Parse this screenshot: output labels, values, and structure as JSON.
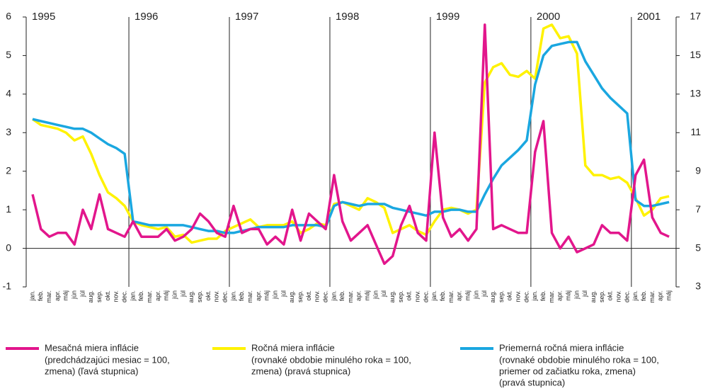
{
  "chart_data": {
    "type": "line",
    "categories": [
      "jan.",
      "feb.",
      "mar.",
      "apr.",
      "máj",
      "jún",
      "júl",
      "aug.",
      "sep.",
      "okt.",
      "nov.",
      "dec.",
      "jan.",
      "feb.",
      "mar.",
      "apr.",
      "máj",
      "jún",
      "júl",
      "aug.",
      "sep.",
      "okt.",
      "nov.",
      "dec.",
      "jan.",
      "feb.",
      "mar.",
      "apr.",
      "máj",
      "jún",
      "júl",
      "aug.",
      "sep.",
      "okt.",
      "nov.",
      "dec.",
      "jan.",
      "feb.",
      "mar.",
      "apr.",
      "máj",
      "jún",
      "júl",
      "aug.",
      "sep.",
      "okt.",
      "nov.",
      "dec.",
      "jan.",
      "feb.",
      "mar.",
      "apr.",
      "máj",
      "jún",
      "júl",
      "aug.",
      "sep.",
      "okt.",
      "nov.",
      "dec.",
      "jan.",
      "feb.",
      "mar.",
      "apr.",
      "máj",
      "jún",
      "júl",
      "aug.",
      "sep.",
      "okt.",
      "nov.",
      "dec.",
      "jan.",
      "feb.",
      "mar.",
      "apr.",
      "máj"
    ],
    "years": [
      "1995",
      "1996",
      "1997",
      "1998",
      "1999",
      "2000",
      "2001"
    ],
    "ylim": [
      -1,
      6
    ],
    "yticks": [
      -1,
      0,
      1,
      2,
      3,
      4,
      5,
      6
    ],
    "y2lim": [
      3,
      17
    ],
    "y2ticks": [
      3,
      5,
      7,
      9,
      11,
      13,
      15,
      17
    ],
    "series": [
      {
        "name": "Mesačná miera inflácie",
        "description": [
          "(predchádzajúci mesiac = 100,",
          "zmena) (ľavá stupnica)"
        ],
        "color": "#e2168c",
        "values": [
          1.4,
          0.5,
          0.3,
          0.4,
          0.4,
          0.1,
          1.0,
          0.5,
          1.4,
          0.5,
          0.4,
          0.3,
          0.7,
          0.3,
          0.3,
          0.3,
          0.5,
          0.2,
          0.3,
          0.5,
          0.9,
          0.7,
          0.4,
          0.3,
          1.1,
          0.4,
          0.5,
          0.5,
          0.1,
          0.3,
          0.1,
          1.0,
          0.2,
          0.9,
          0.7,
          0.5,
          1.9,
          0.7,
          0.2,
          0.4,
          0.6,
          0.1,
          -0.4,
          -0.2,
          0.6,
          1.1,
          0.4,
          0.2,
          3.0,
          0.8,
          0.3,
          0.5,
          0.2,
          0.5,
          5.8,
          0.5,
          0.6,
          0.5,
          0.4,
          0.4,
          2.5,
          3.3,
          0.4,
          0.0,
          0.3,
          -0.1,
          0.0,
          0.1,
          0.6,
          0.4,
          0.4,
          0.2,
          1.9,
          2.3,
          0.8,
          0.4,
          0.3
        ]
      },
      {
        "name": "Ročná miera inflácie",
        "description": [
          "(rovnaké obdobie minulého roka = 100,",
          "zmena) (pravá stupnica)"
        ],
        "color": "#fff200",
        "axis": "y2",
        "values": [
          11.7,
          11.4,
          11.3,
          11.2,
          11.0,
          10.6,
          10.8,
          9.9,
          8.8,
          7.9,
          7.6,
          7.2,
          6.4,
          6.2,
          6.1,
          6.0,
          6.1,
          5.6,
          5.7,
          5.3,
          5.4,
          5.5,
          5.5,
          5.9,
          6.1,
          6.3,
          6.5,
          6.1,
          6.2,
          6.2,
          6.2,
          6.4,
          5.8,
          6.0,
          6.3,
          6.2,
          7.3,
          7.4,
          7.2,
          7.0,
          7.6,
          7.4,
          7.1,
          5.8,
          6.0,
          6.2,
          5.9,
          5.7,
          6.4,
          7.0,
          7.1,
          7.0,
          6.8,
          7.0,
          13.6,
          14.4,
          14.6,
          14.0,
          13.9,
          14.2,
          13.8,
          16.4,
          16.6,
          15.9,
          16.0,
          15.1,
          9.3,
          8.8,
          8.8,
          8.6,
          8.7,
          8.4,
          7.6,
          6.7,
          7.0,
          7.6,
          7.7
        ]
      },
      {
        "name": "Priemerná ročná miera inflácie",
        "description": [
          "(rovnaké obdobie minulého roka = 100,",
          "priemer od začiatku roka, zmena)",
          "(pravá stupnica)"
        ],
        "color": "#1aa7e0",
        "axis": "y2",
        "values": [
          11.7,
          11.6,
          11.5,
          11.4,
          11.3,
          11.2,
          11.2,
          11.0,
          10.7,
          10.4,
          10.2,
          9.9,
          6.4,
          6.3,
          6.2,
          6.2,
          6.2,
          6.2,
          6.2,
          6.1,
          6.0,
          5.9,
          5.9,
          5.8,
          5.8,
          5.9,
          6.0,
          6.1,
          6.1,
          6.1,
          6.1,
          6.2,
          6.2,
          6.2,
          6.2,
          6.1,
          7.2,
          7.4,
          7.3,
          7.2,
          7.3,
          7.3,
          7.3,
          7.1,
          7.0,
          6.9,
          6.8,
          6.7,
          6.9,
          6.9,
          7.0,
          7.0,
          6.9,
          6.9,
          7.8,
          8.6,
          9.3,
          9.7,
          10.1,
          10.6,
          13.5,
          15.0,
          15.5,
          15.6,
          15.7,
          15.7,
          14.7,
          14.0,
          13.3,
          12.8,
          12.4,
          12.0,
          7.5,
          7.2,
          7.2,
          7.3,
          7.4
        ]
      }
    ]
  }
}
